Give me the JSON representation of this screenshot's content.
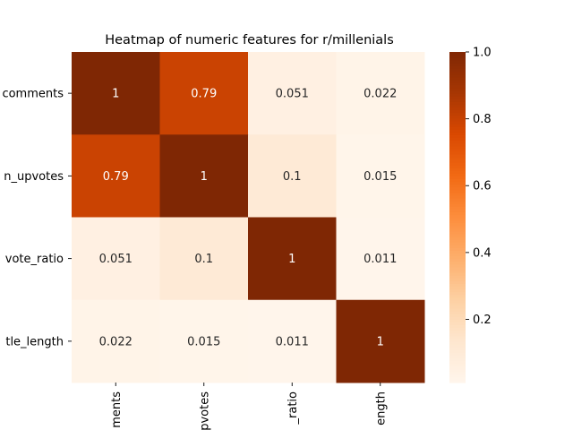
{
  "chart_data": {
    "type": "heatmap",
    "title": "Heatmap of numeric features for r/millenials",
    "xlabel": "",
    "ylabel": "",
    "row_labels": [
      "num_comments",
      "num_upvotes",
      "upvote_ratio",
      "title_length"
    ],
    "col_labels": [
      "num_comments",
      "num_upvotes",
      "upvote_ratio",
      "title_length"
    ],
    "visible_row_labels": [
      "comments",
      "n_upvotes",
      "vote_ratio",
      "tle_length"
    ],
    "visible_col_labels": [
      "ments",
      "pvotes",
      "_ratio",
      "ength"
    ],
    "values": [
      [
        1,
        0.79,
        0.051,
        0.022
      ],
      [
        0.79,
        1,
        0.1,
        0.015
      ],
      [
        0.051,
        0.1,
        1,
        0.011
      ],
      [
        0.022,
        0.015,
        0.011,
        1
      ]
    ],
    "cell_labels": [
      [
        "1",
        "0.79",
        "0.051",
        "0.022"
      ],
      [
        "0.79",
        "1",
        "0.1",
        "0.015"
      ],
      [
        "0.051",
        "0.1",
        "1",
        "0.011"
      ],
      [
        "0.022",
        "0.015",
        "0.011",
        "1"
      ]
    ],
    "colormap": "Oranges",
    "colorbar": {
      "range": [
        0.011,
        1.0
      ],
      "ticks": [
        0.2,
        0.4,
        0.6,
        0.8,
        1.0
      ],
      "tick_labels": [
        "0.2",
        "0.4",
        "0.6",
        "0.8",
        "1.0"
      ]
    },
    "grid": false,
    "legend": "colorbar-right"
  }
}
